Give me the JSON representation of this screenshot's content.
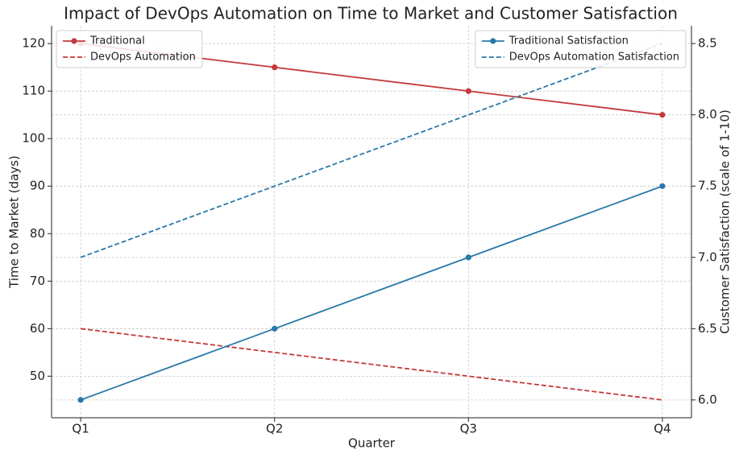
{
  "chart_data": {
    "type": "line",
    "title": "Impact of DevOps Automation on Time to Market and Customer Satisfaction",
    "xlabel": "Quarter",
    "ylabel": "Time to Market (days)",
    "y2label": "Customer Satisfaction (scale of 1-10)",
    "categories": [
      "Q1",
      "Q2",
      "Q3",
      "Q4"
    ],
    "series": [
      {
        "name": "Traditional",
        "color": "#c4393a",
        "linestyle": "solid",
        "marker": true,
        "axis": "y",
        "values": [
          120,
          115,
          110,
          105
        ]
      },
      {
        "name": "DevOps Automation",
        "color": "#c4393a",
        "linestyle": "dashed",
        "marker": false,
        "axis": "y",
        "values": [
          60,
          55,
          50,
          45
        ]
      },
      {
        "name": "Traditional Satisfaction",
        "color": "#2b78a8",
        "linestyle": "solid",
        "marker": true,
        "axis": "y2",
        "values": [
          6.0,
          6.5,
          7.0,
          7.5
        ]
      },
      {
        "name": "DevOps Automation Satisfaction",
        "color": "#2b78a8",
        "linestyle": "dashed",
        "marker": false,
        "axis": "y2",
        "values": [
          7.0,
          7.5,
          8.0,
          8.5
        ]
      }
    ],
    "ylim": [
      41.25,
      123.75
    ],
    "yticks": [
      50,
      60,
      70,
      80,
      90,
      100,
      110,
      120
    ],
    "y2lim": [
      5.875,
      8.625
    ],
    "y2ticks": [
      {
        "value": 6.0,
        "label": "6.0"
      },
      {
        "value": 6.5,
        "label": "6.5"
      },
      {
        "value": 7.0,
        "label": "7.0"
      },
      {
        "value": 7.5,
        "label": "7.5"
      },
      {
        "value": 8.0,
        "label": "8.0"
      },
      {
        "value": 8.5,
        "label": "8.5"
      }
    ],
    "grid": true,
    "legend_y": "upper left",
    "legend_y2": "upper right"
  }
}
